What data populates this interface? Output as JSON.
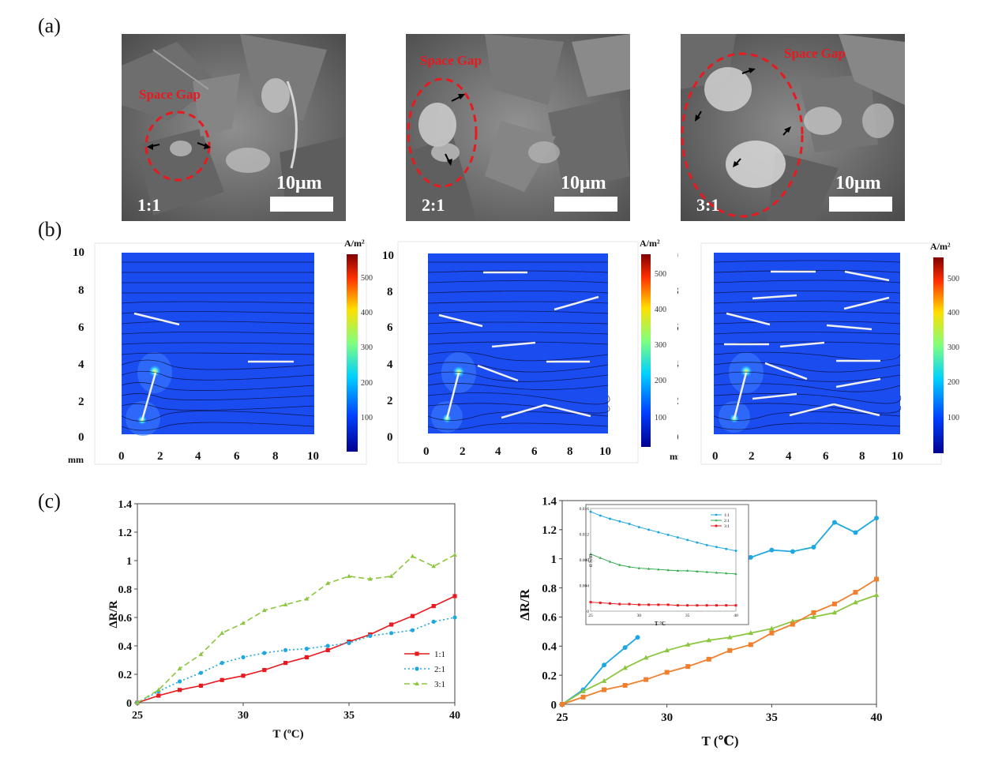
{
  "panels": {
    "a": "(a)",
    "b": "(b)",
    "c": "(c)"
  },
  "sem": {
    "annotation": "Space Gap",
    "scale_text": "10μm",
    "ratios": [
      "1:1",
      "2:1",
      "3:1"
    ]
  },
  "sim": {
    "unit": "A/m²",
    "axis_unit": "mm",
    "x_ticks": [
      "0",
      "2",
      "4",
      "6",
      "8",
      "10"
    ],
    "y_ticks": [
      "0",
      "2",
      "4",
      "6",
      "8",
      "10"
    ],
    "colorbar_ticks_a": [
      "100",
      "200",
      "300",
      "400",
      "500"
    ],
    "colorbar_ticks_b": [
      "100",
      "200",
      "300",
      "400",
      "500"
    ]
  },
  "chart_data": [
    {
      "type": "line",
      "xlabel": "T (ºC)",
      "ylabel": "ΔR/R",
      "xlim": [
        25,
        40
      ],
      "ylim": [
        0,
        1.4
      ],
      "x_ticks": [
        "25",
        "30",
        "35",
        "40"
      ],
      "y_ticks": [
        "0",
        "0.2",
        "0.4",
        "0.6",
        "0.8",
        "1",
        "1.2",
        "1.4"
      ],
      "legend_position": "bottom-right",
      "x": [
        25,
        26,
        27,
        28,
        29,
        30,
        31,
        32,
        33,
        34,
        35,
        36,
        37,
        38,
        39,
        40
      ],
      "series": [
        {
          "name": "1:1",
          "color": "#e8191f",
          "marker": "square",
          "dash": "solid",
          "values": [
            0,
            0.05,
            0.09,
            0.12,
            0.16,
            0.19,
            0.23,
            0.28,
            0.32,
            0.37,
            0.43,
            0.48,
            0.55,
            0.61,
            0.68,
            0.75
          ]
        },
        {
          "name": "2:1",
          "color": "#1fa8e0",
          "marker": "circle",
          "dash": "dotted",
          "values": [
            0,
            0.08,
            0.15,
            0.21,
            0.28,
            0.32,
            0.35,
            0.37,
            0.38,
            0.4,
            0.42,
            0.47,
            0.49,
            0.51,
            0.57,
            0.6
          ]
        },
        {
          "name": "3:1",
          "color": "#8cc63f",
          "marker": "triangle",
          "dash": "dashed",
          "values": [
            0,
            0.09,
            0.24,
            0.34,
            0.49,
            0.56,
            0.65,
            0.69,
            0.73,
            0.84,
            0.89,
            0.87,
            0.89,
            1.03,
            0.96,
            1.04
          ]
        }
      ]
    },
    {
      "type": "line",
      "xlabel": "T (℃)",
      "ylabel": "ΔR/R",
      "xlim": [
        25,
        40
      ],
      "ylim": [
        0,
        1.4
      ],
      "x_ticks": [
        "25",
        "30",
        "35",
        "40"
      ],
      "y_ticks": [
        "0",
        "0.2",
        "0.4",
        "0.6",
        "0.8",
        "1",
        "1.2",
        "1.4"
      ],
      "series": [
        {
          "color": "#1fa8e0",
          "marker": "circle",
          "x": [
            25,
            26,
            27,
            28,
            28.6
          ],
          "values": [
            0,
            0.1,
            0.27,
            0.39,
            0.46
          ],
          "x2": [
            33.5,
            34,
            35,
            36,
            37,
            38,
            39,
            40
          ],
          "values2": [
            0.95,
            1.01,
            1.06,
            1.05,
            1.08,
            1.25,
            1.18,
            1.28
          ]
        },
        {
          "color": "#8cc63f",
          "marker": "triangle",
          "x": [
            25,
            26,
            27,
            28,
            29,
            30,
            31,
            32,
            33,
            34,
            35,
            36,
            37,
            38,
            39,
            40
          ],
          "values": [
            0,
            0.09,
            0.16,
            0.25,
            0.32,
            0.37,
            0.41,
            0.44,
            0.46,
            0.49,
            0.52,
            0.57,
            0.6,
            0.63,
            0.7,
            0.75
          ]
        },
        {
          "color": "#f07f2e",
          "marker": "square",
          "x": [
            25,
            26,
            27,
            28,
            29,
            30,
            31,
            32,
            33,
            34,
            35,
            36,
            37,
            38,
            39,
            40
          ],
          "values": [
            0,
            0.05,
            0.1,
            0.13,
            0.17,
            0.22,
            0.26,
            0.31,
            0.37,
            0.41,
            0.49,
            0.55,
            0.63,
            0.69,
            0.77,
            0.86
          ]
        }
      ],
      "inset": {
        "ylabel": "σ S/m",
        "xlabel": "T °C",
        "xlim": [
          25,
          40
        ],
        "ylim": [
          0,
          0.016
        ],
        "x_ticks": [
          "25",
          "30",
          "35",
          "40"
        ],
        "y_ticks": [
          "0",
          "0.004",
          "0.008",
          "0.012",
          "0.016"
        ],
        "legend_position": "top-right",
        "x": [
          25,
          26,
          27,
          28,
          29,
          30,
          31,
          32,
          33,
          34,
          35,
          36,
          37,
          38,
          39,
          40
        ],
        "series": [
          {
            "name": "1:1",
            "color": "#1fa8e0",
            "marker": "circle",
            "values": [
              0.0155,
              0.0149,
              0.0144,
              0.014,
              0.0136,
              0.0131,
              0.0127,
              0.0123,
              0.0119,
              0.0115,
              0.0111,
              0.0107,
              0.0103,
              0.01,
              0.0097,
              0.0094
            ]
          },
          {
            "name": "2:1",
            "color": "#2eaa4a",
            "marker": "triangle",
            "values": [
              0.0089,
              0.0083,
              0.0077,
              0.0072,
              0.0069,
              0.0067,
              0.0066,
              0.0065,
              0.0064,
              0.0063,
              0.0063,
              0.0062,
              0.0061,
              0.006,
              0.0059,
              0.0058
            ]
          },
          {
            "name": "3:1",
            "color": "#e8191f",
            "marker": "square",
            "values": [
              0.0014,
              0.0013,
              0.0012,
              0.0011,
              0.0011,
              0.001,
              0.001,
              0.001,
              0.001,
              0.0009,
              0.0009,
              0.0009,
              0.0009,
              0.0009,
              0.0009,
              0.0009
            ]
          }
        ]
      }
    }
  ]
}
